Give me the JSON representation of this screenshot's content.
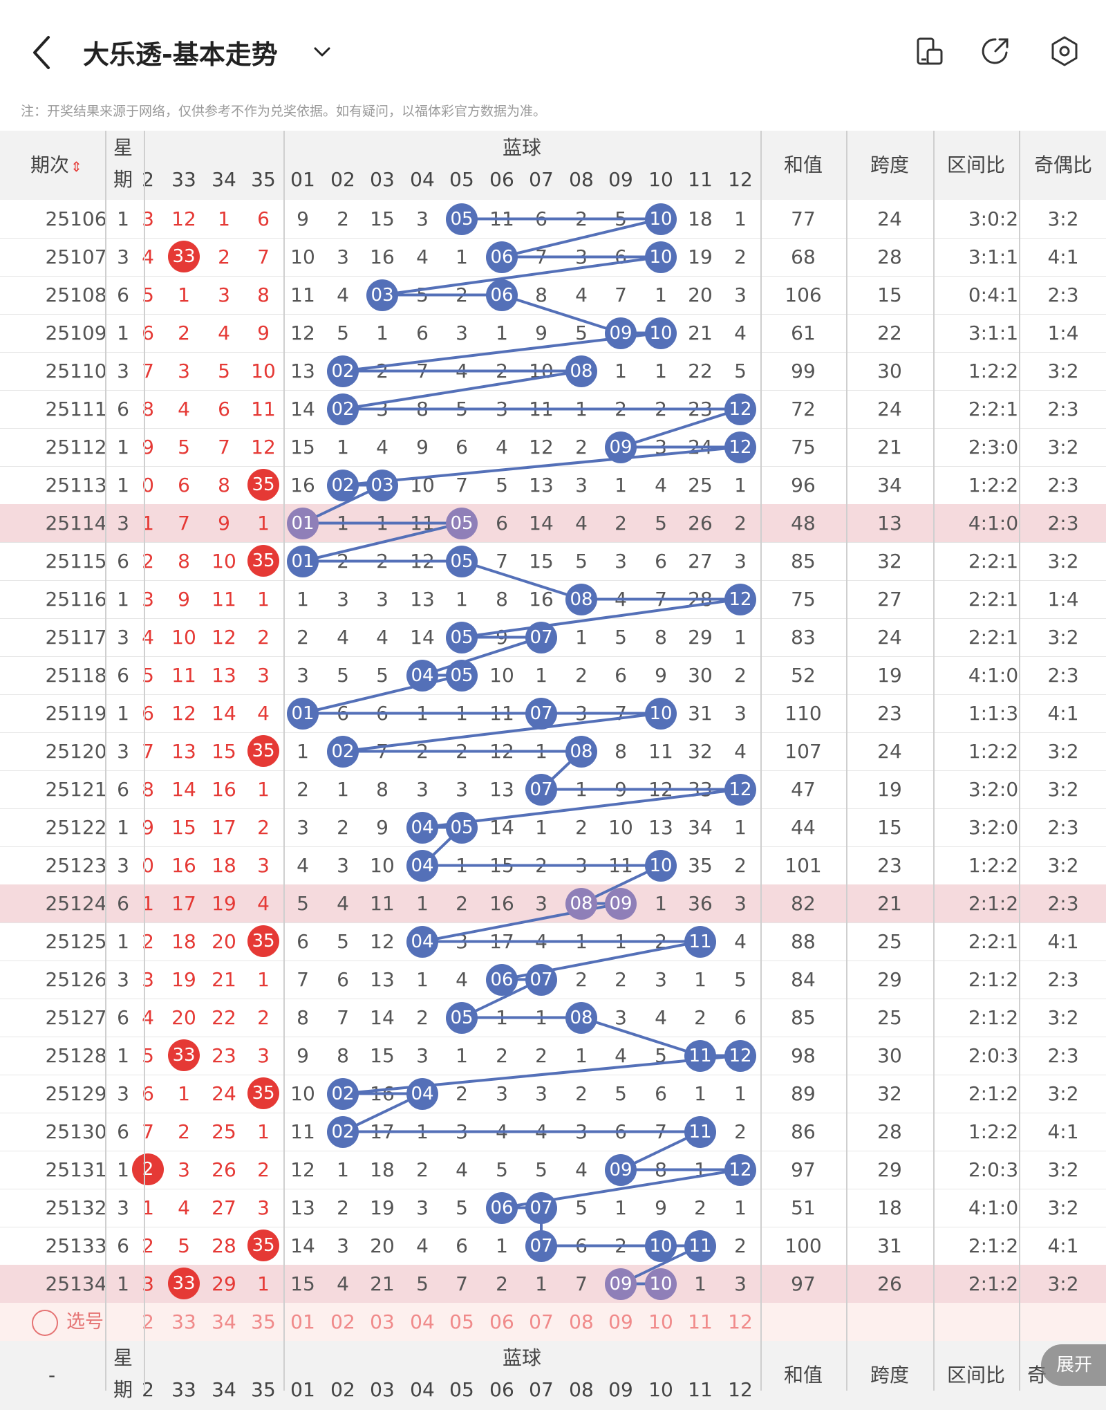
{
  "header": {
    "title": "大乐透-基本走势",
    "notice": "注：开奖结果来源于网络，仅供参考不作为兑奖依据。如有疑问，以福体彩官方数据为准。"
  },
  "icons": [
    "back-icon",
    "chevron-down-icon",
    "display-icon",
    "share-icon",
    "settings-icon"
  ],
  "colors": {
    "red_ball": "#e53935",
    "blue_ball": "#5470b8",
    "highlight_row": "#f5dadd",
    "header_bg": "#f2f2f2",
    "line": "#5470b8"
  },
  "columns": {
    "issue": "期次",
    "week_top": "星",
    "week_bottom": "期",
    "blue_group": "蓝球",
    "sum": "和值",
    "span": "跨度",
    "range_ratio": "区间比",
    "odd_even_ratio": "奇偶比",
    "front_tail": [
      "2",
      "33",
      "34",
      "35"
    ],
    "blue": [
      "01",
      "02",
      "03",
      "04",
      "05",
      "06",
      "07",
      "08",
      "09",
      "10",
      "11",
      "12"
    ]
  },
  "rows": [
    {
      "issue": "25106",
      "week": "1",
      "f0": "3",
      "f1": "12",
      "f2": "1",
      "f3": "6",
      "blue": [
        "9",
        "2",
        "15",
        "3",
        "05",
        "11",
        "6",
        "2",
        "5",
        "10",
        "18",
        "1"
      ],
      "sum": "77",
      "span": "24",
      "zone": "3:0:2",
      "oe": "3:2"
    },
    {
      "issue": "25107",
      "week": "3",
      "f0": "4",
      "f1": "33",
      "f2": "2",
      "f3": "7",
      "blue": [
        "10",
        "3",
        "16",
        "4",
        "1",
        "06",
        "7",
        "3",
        "6",
        "10",
        "19",
        "2"
      ],
      "sum": "68",
      "span": "28",
      "zone": "3:1:1",
      "oe": "4:1"
    },
    {
      "issue": "25108",
      "week": "6",
      "f0": "5",
      "f1": "1",
      "f2": "3",
      "f3": "8",
      "blue": [
        "11",
        "4",
        "03",
        "5",
        "2",
        "06",
        "8",
        "4",
        "7",
        "1",
        "20",
        "3"
      ],
      "sum": "106",
      "span": "15",
      "zone": "0:4:1",
      "oe": "2:3"
    },
    {
      "issue": "25109",
      "week": "1",
      "f0": "6",
      "f1": "2",
      "f2": "4",
      "f3": "9",
      "blue": [
        "12",
        "5",
        "1",
        "6",
        "3",
        "1",
        "9",
        "5",
        "09",
        "10",
        "21",
        "4"
      ],
      "sum": "61",
      "span": "22",
      "zone": "3:1:1",
      "oe": "1:4"
    },
    {
      "issue": "25110",
      "week": "3",
      "f0": "7",
      "f1": "3",
      "f2": "5",
      "f3": "10",
      "blue": [
        "13",
        "02",
        "2",
        "7",
        "4",
        "2",
        "10",
        "08",
        "1",
        "1",
        "22",
        "5"
      ],
      "sum": "99",
      "span": "30",
      "zone": "1:2:2",
      "oe": "3:2"
    },
    {
      "issue": "25111",
      "week": "6",
      "f0": "8",
      "f1": "4",
      "f2": "6",
      "f3": "11",
      "blue": [
        "14",
        "02",
        "3",
        "8",
        "5",
        "3",
        "11",
        "1",
        "2",
        "2",
        "23",
        "12"
      ],
      "sum": "72",
      "span": "24",
      "zone": "2:2:1",
      "oe": "2:3"
    },
    {
      "issue": "25112",
      "week": "1",
      "f0": "9",
      "f1": "5",
      "f2": "7",
      "f3": "12",
      "blue": [
        "15",
        "1",
        "4",
        "9",
        "6",
        "4",
        "12",
        "2",
        "09",
        "3",
        "24",
        "12"
      ],
      "sum": "75",
      "span": "21",
      "zone": "2:3:0",
      "oe": "3:2"
    },
    {
      "issue": "25113",
      "week": "1",
      "f0": "0",
      "f1": "6",
      "f2": "8",
      "f3": "35",
      "blue": [
        "16",
        "02",
        "03",
        "10",
        "7",
        "5",
        "13",
        "3",
        "1",
        "4",
        "25",
        "1"
      ],
      "sum": "96",
      "span": "34",
      "zone": "1:2:2",
      "oe": "2:3"
    },
    {
      "issue": "25114",
      "week": "3",
      "f0": "1",
      "f1": "7",
      "f2": "9",
      "f3": "1",
      "blue": [
        "01",
        "1",
        "1",
        "11",
        "05",
        "6",
        "14",
        "4",
        "2",
        "5",
        "26",
        "2"
      ],
      "sum": "48",
      "span": "13",
      "zone": "4:1:0",
      "oe": "2:3"
    },
    {
      "issue": "25115",
      "week": "6",
      "f0": "2",
      "f1": "8",
      "f2": "10",
      "f3": "35",
      "blue": [
        "01",
        "2",
        "2",
        "12",
        "05",
        "7",
        "15",
        "5",
        "3",
        "6",
        "27",
        "3"
      ],
      "sum": "85",
      "span": "32",
      "zone": "2:2:1",
      "oe": "3:2"
    },
    {
      "issue": "25116",
      "week": "1",
      "f0": "3",
      "f1": "9",
      "f2": "11",
      "f3": "1",
      "blue": [
        "1",
        "3",
        "3",
        "13",
        "1",
        "8",
        "16",
        "08",
        "4",
        "7",
        "28",
        "12"
      ],
      "sum": "75",
      "span": "27",
      "zone": "2:2:1",
      "oe": "1:4"
    },
    {
      "issue": "25117",
      "week": "3",
      "f0": "4",
      "f1": "10",
      "f2": "12",
      "f3": "2",
      "blue": [
        "2",
        "4",
        "4",
        "14",
        "05",
        "9",
        "07",
        "1",
        "5",
        "8",
        "29",
        "1"
      ],
      "sum": "83",
      "span": "24",
      "zone": "2:2:1",
      "oe": "3:2"
    },
    {
      "issue": "25118",
      "week": "6",
      "f0": "5",
      "f1": "11",
      "f2": "13",
      "f3": "3",
      "blue": [
        "3",
        "5",
        "5",
        "04",
        "05",
        "10",
        "1",
        "2",
        "6",
        "9",
        "30",
        "2"
      ],
      "sum": "52",
      "span": "19",
      "zone": "4:1:0",
      "oe": "2:3"
    },
    {
      "issue": "25119",
      "week": "1",
      "f0": "6",
      "f1": "12",
      "f2": "14",
      "f3": "4",
      "blue": [
        "01",
        "6",
        "6",
        "1",
        "1",
        "11",
        "07",
        "3",
        "7",
        "10",
        "31",
        "3"
      ],
      "sum": "110",
      "span": "23",
      "zone": "1:1:3",
      "oe": "4:1"
    },
    {
      "issue": "25120",
      "week": "3",
      "f0": "7",
      "f1": "13",
      "f2": "15",
      "f3": "35",
      "blue": [
        "1",
        "02",
        "7",
        "2",
        "2",
        "12",
        "1",
        "08",
        "8",
        "11",
        "32",
        "4"
      ],
      "sum": "107",
      "span": "24",
      "zone": "1:2:2",
      "oe": "3:2"
    },
    {
      "issue": "25121",
      "week": "6",
      "f0": "8",
      "f1": "14",
      "f2": "16",
      "f3": "1",
      "blue": [
        "2",
        "1",
        "8",
        "3",
        "3",
        "13",
        "07",
        "1",
        "9",
        "12",
        "33",
        "12"
      ],
      "sum": "47",
      "span": "19",
      "zone": "3:2:0",
      "oe": "3:2"
    },
    {
      "issue": "25122",
      "week": "1",
      "f0": "9",
      "f1": "15",
      "f2": "17",
      "f3": "2",
      "blue": [
        "3",
        "2",
        "9",
        "04",
        "05",
        "14",
        "1",
        "2",
        "10",
        "13",
        "34",
        "1"
      ],
      "sum": "44",
      "span": "15",
      "zone": "3:2:0",
      "oe": "2:3"
    },
    {
      "issue": "25123",
      "week": "3",
      "f0": "0",
      "f1": "16",
      "f2": "18",
      "f3": "3",
      "blue": [
        "4",
        "3",
        "10",
        "04",
        "1",
        "15",
        "2",
        "3",
        "11",
        "10",
        "35",
        "2"
      ],
      "sum": "101",
      "span": "23",
      "zone": "1:2:2",
      "oe": "3:2"
    },
    {
      "issue": "25124",
      "week": "6",
      "f0": "1",
      "f1": "17",
      "f2": "19",
      "f3": "4",
      "blue": [
        "5",
        "4",
        "11",
        "1",
        "2",
        "16",
        "3",
        "08",
        "09",
        "1",
        "36",
        "3"
      ],
      "sum": "82",
      "span": "21",
      "zone": "2:1:2",
      "oe": "2:3"
    },
    {
      "issue": "25125",
      "week": "1",
      "f0": "2",
      "f1": "18",
      "f2": "20",
      "f3": "35",
      "blue": [
        "6",
        "5",
        "12",
        "04",
        "3",
        "17",
        "4",
        "1",
        "1",
        "2",
        "11",
        "4"
      ],
      "sum": "88",
      "span": "25",
      "zone": "2:2:1",
      "oe": "4:1"
    },
    {
      "issue": "25126",
      "week": "3",
      "f0": "3",
      "f1": "19",
      "f2": "21",
      "f3": "1",
      "blue": [
        "7",
        "6",
        "13",
        "1",
        "4",
        "06",
        "07",
        "2",
        "2",
        "3",
        "1",
        "5"
      ],
      "sum": "84",
      "span": "29",
      "zone": "2:1:2",
      "oe": "2:3"
    },
    {
      "issue": "25127",
      "week": "6",
      "f0": "4",
      "f1": "20",
      "f2": "22",
      "f3": "2",
      "blue": [
        "8",
        "7",
        "14",
        "2",
        "05",
        "1",
        "1",
        "08",
        "3",
        "4",
        "2",
        "6"
      ],
      "sum": "85",
      "span": "25",
      "zone": "2:1:2",
      "oe": "3:2"
    },
    {
      "issue": "25128",
      "week": "1",
      "f0": "5",
      "f1": "33",
      "f2": "23",
      "f3": "3",
      "blue": [
        "9",
        "8",
        "15",
        "3",
        "1",
        "2",
        "2",
        "1",
        "4",
        "5",
        "11",
        "12"
      ],
      "sum": "98",
      "span": "30",
      "zone": "2:0:3",
      "oe": "2:3"
    },
    {
      "issue": "25129",
      "week": "3",
      "f0": "6",
      "f1": "1",
      "f2": "24",
      "f3": "35",
      "blue": [
        "10",
        "02",
        "16",
        "04",
        "2",
        "3",
        "3",
        "2",
        "5",
        "6",
        "1",
        "1"
      ],
      "sum": "89",
      "span": "32",
      "zone": "2:1:2",
      "oe": "3:2"
    },
    {
      "issue": "25130",
      "week": "6",
      "f0": "7",
      "f1": "2",
      "f2": "25",
      "f3": "1",
      "blue": [
        "11",
        "02",
        "17",
        "1",
        "3",
        "4",
        "4",
        "3",
        "6",
        "7",
        "11",
        "2"
      ],
      "sum": "86",
      "span": "28",
      "zone": "1:2:2",
      "oe": "4:1"
    },
    {
      "issue": "25131",
      "week": "1",
      "f0": "2",
      "f1": "3",
      "f2": "26",
      "f3": "2",
      "blue": [
        "12",
        "1",
        "18",
        "2",
        "4",
        "5",
        "5",
        "4",
        "09",
        "8",
        "1",
        "12"
      ],
      "sum": "97",
      "span": "29",
      "zone": "2:0:3",
      "oe": "3:2"
    },
    {
      "issue": "25132",
      "week": "3",
      "f0": "1",
      "f1": "4",
      "f2": "27",
      "f3": "3",
      "blue": [
        "13",
        "2",
        "19",
        "3",
        "5",
        "06",
        "07",
        "5",
        "1",
        "9",
        "2",
        "1"
      ],
      "sum": "51",
      "span": "18",
      "zone": "4:1:0",
      "oe": "3:2"
    },
    {
      "issue": "25133",
      "week": "6",
      "f0": "2",
      "f1": "5",
      "f2": "28",
      "f3": "35",
      "blue": [
        "14",
        "3",
        "20",
        "4",
        "6",
        "1",
        "07",
        "6",
        "2",
        "10",
        "11",
        "2"
      ],
      "sum": "100",
      "span": "31",
      "zone": "2:1:2",
      "oe": "4:1"
    },
    {
      "issue": "25134",
      "week": "1",
      "f0": "3",
      "f1": "33",
      "f2": "29",
      "f3": "1",
      "blue": [
        "15",
        "4",
        "21",
        "5",
        "7",
        "2",
        "1",
        "7",
        "09",
        "10",
        "1",
        "3"
      ],
      "sum": "97",
      "span": "26",
      "zone": "2:1:2",
      "oe": "3:2"
    }
  ],
  "red_ball_cells": [
    [
      1,
      1
    ],
    [
      7,
      3
    ],
    [
      9,
      3
    ],
    [
      14,
      3
    ],
    [
      19,
      3
    ],
    [
      22,
      1
    ],
    [
      23,
      3
    ],
    [
      25,
      0
    ],
    [
      27,
      3
    ],
    [
      28,
      1
    ]
  ],
  "purple_rows": [
    8,
    18,
    28
  ],
  "select_row": {
    "label": "选号",
    "front": [
      "2",
      "33",
      "34",
      "35"
    ],
    "blue": [
      "01",
      "02",
      "03",
      "04",
      "05",
      "06",
      "07",
      "08",
      "09",
      "10",
      "11",
      "12"
    ]
  },
  "footer": {
    "issue_dash": "-",
    "oe_cut": "奇",
    "expand_label": "展开"
  }
}
